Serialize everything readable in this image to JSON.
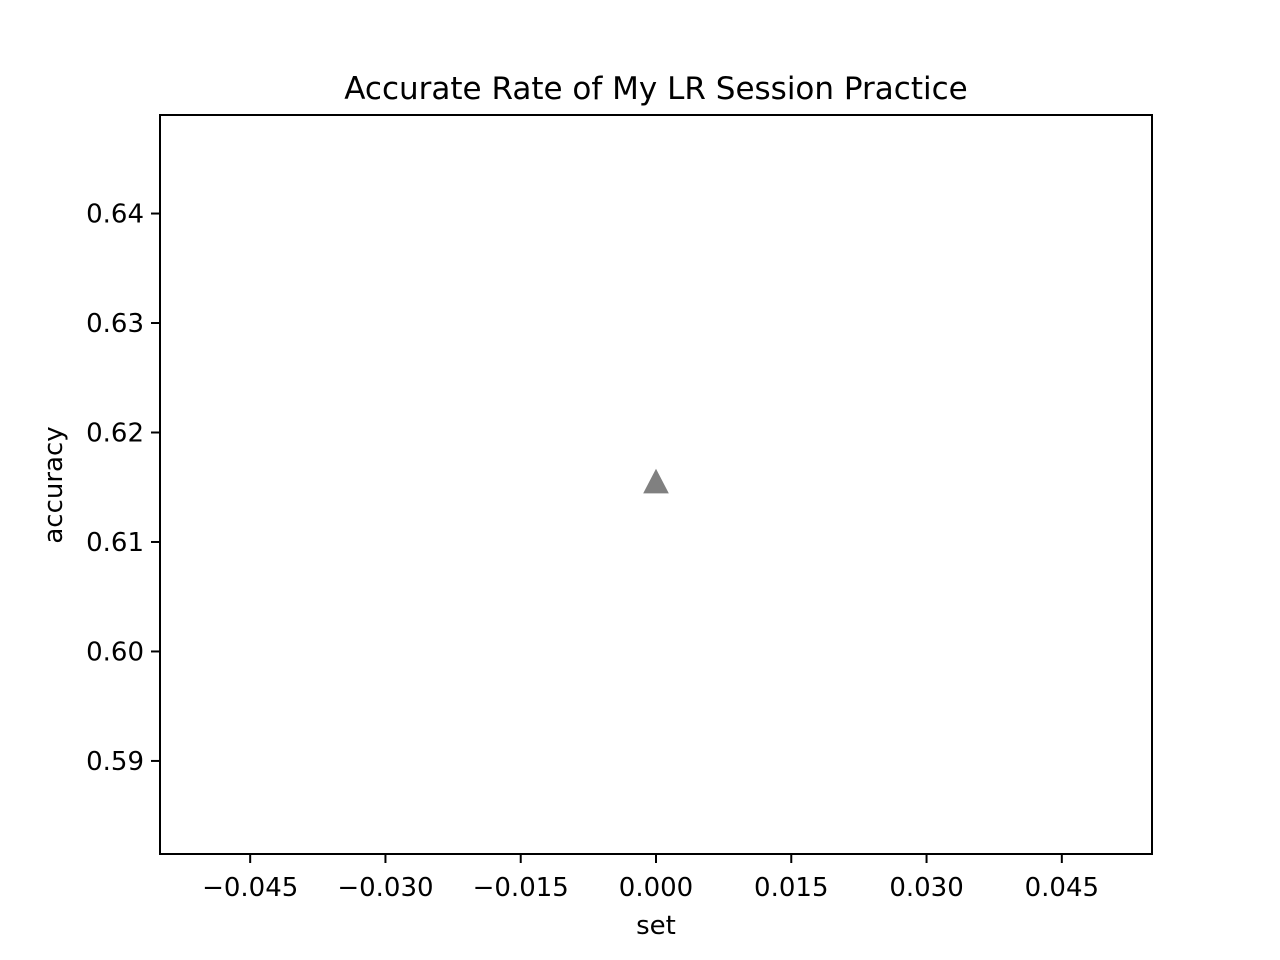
{
  "chart_data": {
    "type": "scatter",
    "title": "Accurate Rate of My LR Session Practice",
    "xlabel": "set",
    "ylabel": "accuracy",
    "xlim": [
      -0.055,
      0.055
    ],
    "ylim": [
      0.5815,
      0.649
    ],
    "xticks": [
      -0.045,
      -0.03,
      -0.015,
      0.0,
      0.015,
      0.03,
      0.045
    ],
    "xtick_labels": [
      "−0.045",
      "−0.030",
      "−0.015",
      "0.000",
      "0.015",
      "0.030",
      "0.045"
    ],
    "yticks": [
      0.59,
      0.6,
      0.61,
      0.62,
      0.63,
      0.64
    ],
    "ytick_labels": [
      "0.59",
      "0.60",
      "0.61",
      "0.62",
      "0.63",
      "0.64"
    ],
    "grid": false,
    "series": [
      {
        "marker": "triangle-up",
        "color": "#808080",
        "points": [
          {
            "x": 0.0,
            "y": 0.6154
          }
        ]
      }
    ]
  }
}
